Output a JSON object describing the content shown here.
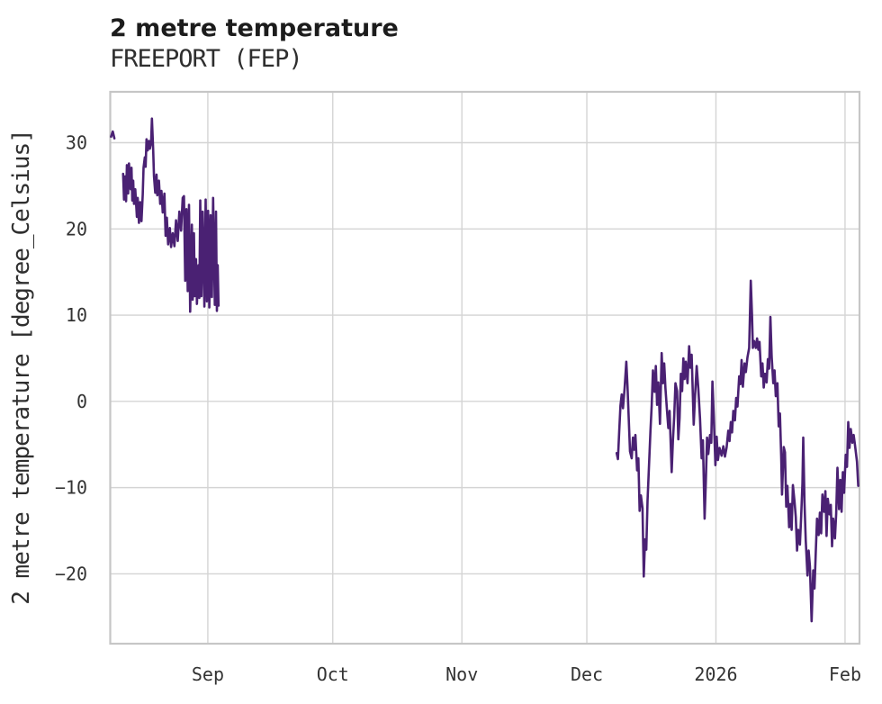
{
  "chart_data": {
    "type": "line",
    "title": "2 metre temperature",
    "subtitle": "FREEPORT (FEP)",
    "xlabel": "",
    "ylabel": "2 metre temperature [degree_Celsius]",
    "x_unit": "days since 2025-08-08T12:00 (time axis)",
    "y_unit": "degree_Celsius",
    "xlim": [
      0,
      179.9
    ],
    "ylim": [
      -28.1,
      35.9
    ],
    "grid": true,
    "legend": "none",
    "grid_color": "#d4d4d4",
    "spine_color": "#c6c6c6",
    "background_color": "#ffffff",
    "text_color": "#333333",
    "xticks": [
      {
        "d": 23.43,
        "label": "Sep"
      },
      {
        "d": 53.43,
        "label": "Oct"
      },
      {
        "d": 84.43,
        "label": "Nov"
      },
      {
        "d": 114.43,
        "label": "Dec"
      },
      {
        "d": 145.43,
        "label": "2026"
      },
      {
        "d": 176.43,
        "label": "Feb"
      }
    ],
    "yticks": [
      {
        "v": 30,
        "label": "30"
      },
      {
        "v": 20,
        "label": "20"
      },
      {
        "v": 10,
        "label": "10"
      },
      {
        "v": 0,
        "label": "0"
      },
      {
        "v": -10,
        "label": "−10"
      },
      {
        "v": -20,
        "label": "−20"
      }
    ],
    "series": [
      {
        "name": "2 metre temperature",
        "color": "#4a2173",
        "line_width": 2.6,
        "segments": [
          [
            [
              0.2,
              30.7
            ],
            [
              0.6,
              31.3
            ],
            [
              1.0,
              30.5
            ]
          ],
          [
            [
              3.1,
              26.4
            ],
            [
              3.3,
              23.4
            ],
            [
              3.6,
              26.1
            ],
            [
              3.8,
              23.2
            ],
            [
              4.0,
              27.4
            ],
            [
              4.3,
              24.1
            ],
            [
              4.5,
              27.6
            ],
            [
              4.9,
              24.6
            ],
            [
              5.1,
              27.1
            ],
            [
              5.3,
              23.3
            ],
            [
              5.5,
              25.6
            ],
            [
              5.7,
              22.9
            ],
            [
              6.0,
              24.6
            ],
            [
              6.4,
              21.4
            ],
            [
              6.6,
              23.6
            ],
            [
              6.9,
              20.7
            ],
            [
              7.2,
              23.1
            ],
            [
              7.5,
              20.9
            ],
            [
              7.8,
              24.0
            ],
            [
              8.0,
              27.1
            ],
            [
              8.3,
              28.3
            ],
            [
              8.5,
              27.2
            ],
            [
              8.7,
              30.4
            ],
            [
              9.0,
              29.1
            ],
            [
              9.3,
              30.2
            ],
            [
              9.5,
              29.3
            ],
            [
              9.8,
              30.0
            ],
            [
              10.0,
              32.8
            ],
            [
              10.3,
              29.2
            ],
            [
              10.5,
              26.1
            ],
            [
              10.8,
              24.2
            ],
            [
              11.1,
              26.3
            ],
            [
              11.3,
              23.9
            ],
            [
              11.7,
              25.6
            ],
            [
              12.0,
              22.9
            ],
            [
              12.3,
              24.4
            ],
            [
              12.6,
              21.9
            ],
            [
              13.0,
              24.1
            ],
            [
              13.3,
              19.2
            ],
            [
              13.6,
              21.3
            ],
            [
              13.9,
              18.2
            ],
            [
              14.3,
              20.1
            ],
            [
              14.6,
              17.9
            ],
            [
              15.0,
              19.5
            ],
            [
              15.4,
              18.0
            ],
            [
              15.8,
              21.0
            ],
            [
              16.2,
              18.6
            ],
            [
              16.6,
              22.0
            ],
            [
              17.0,
              19.8
            ],
            [
              17.4,
              23.6
            ],
            [
              17.7,
              23.8
            ],
            [
              18.0,
              14.0
            ],
            [
              18.3,
              22.3
            ],
            [
              18.6,
              12.8
            ],
            [
              18.9,
              22.8
            ],
            [
              19.2,
              10.4
            ],
            [
              19.6,
              20.5
            ],
            [
              19.8,
              11.8
            ],
            [
              20.1,
              19.5
            ],
            [
              20.3,
              12.2
            ],
            [
              20.6,
              16.5
            ],
            [
              20.8,
              11.3
            ],
            [
              21.2,
              15.8
            ],
            [
              21.4,
              12.0
            ],
            [
              21.6,
              23.3
            ],
            [
              21.9,
              12.2
            ],
            [
              22.2,
              22.0
            ],
            [
              22.6,
              11.0
            ],
            [
              22.9,
              23.4
            ],
            [
              23.2,
              11.6
            ],
            [
              23.5,
              22.1
            ],
            [
              23.8,
              10.9
            ],
            [
              24.1,
              21.6
            ],
            [
              24.4,
              12.1
            ],
            [
              24.7,
              23.6
            ],
            [
              25.1,
              11.2
            ],
            [
              25.4,
              22.0
            ],
            [
              25.6,
              10.5
            ],
            [
              25.8,
              15.8
            ],
            [
              26.0,
              11.1
            ]
          ],
          [
            [
              121.6,
              -6.0
            ],
            [
              121.9,
              -6.7
            ],
            [
              122.2,
              -3.5
            ],
            [
              122.5,
              -0.5
            ],
            [
              122.8,
              0.8
            ],
            [
              123.1,
              -0.8
            ],
            [
              123.5,
              1.5
            ],
            [
              123.9,
              4.6
            ],
            [
              124.2,
              1.8
            ],
            [
              124.5,
              -2.0
            ],
            [
              124.8,
              -5.8
            ],
            [
              125.2,
              -6.6
            ],
            [
              125.5,
              -4.2
            ],
            [
              125.8,
              -5.6
            ],
            [
              126.1,
              -3.9
            ],
            [
              126.5,
              -8.0
            ],
            [
              126.8,
              -6.6
            ],
            [
              127.1,
              -12.7
            ],
            [
              127.4,
              -10.9
            ],
            [
              127.8,
              -12.4
            ],
            [
              128.1,
              -20.3
            ],
            [
              128.4,
              -16.0
            ],
            [
              128.7,
              -17.2
            ],
            [
              129.0,
              -11.5
            ],
            [
              129.4,
              -7.0
            ],
            [
              129.7,
              -3.5
            ],
            [
              130.0,
              -0.5
            ],
            [
              130.3,
              3.6
            ],
            [
              130.7,
              1.1
            ],
            [
              131.0,
              4.1
            ],
            [
              131.3,
              -0.4
            ],
            [
              131.6,
              2.2
            ],
            [
              132.0,
              -2.6
            ],
            [
              132.4,
              5.6
            ],
            [
              132.7,
              2.1
            ],
            [
              133.0,
              4.4
            ],
            [
              133.3,
              1.5
            ],
            [
              133.7,
              -1.2
            ],
            [
              134.0,
              -3.1
            ],
            [
              134.3,
              -1.1
            ],
            [
              134.8,
              -8.2
            ],
            [
              135.1,
              -4.5
            ],
            [
              135.4,
              -1.8
            ],
            [
              135.7,
              2.1
            ],
            [
              136.1,
              1.2
            ],
            [
              136.4,
              -4.4
            ],
            [
              136.7,
              -1.9
            ],
            [
              137.0,
              3.2
            ],
            [
              137.3,
              1.2
            ],
            [
              137.6,
              5.0
            ],
            [
              137.9,
              2.6
            ],
            [
              138.2,
              4.6
            ],
            [
              138.6,
              2.1
            ],
            [
              139.0,
              6.4
            ],
            [
              139.3,
              3.9
            ],
            [
              139.6,
              5.4
            ],
            [
              140.1,
              -2.7
            ],
            [
              140.4,
              0.5
            ],
            [
              140.8,
              4.1
            ],
            [
              141.2,
              1.5
            ],
            [
              141.6,
              -2.0
            ],
            [
              142.0,
              -6.6
            ],
            [
              142.3,
              -4.5
            ],
            [
              142.7,
              -13.6
            ],
            [
              143.0,
              -9.5
            ],
            [
              143.3,
              -4.2
            ],
            [
              143.6,
              -6.1
            ],
            [
              144.0,
              -3.9
            ],
            [
              144.3,
              -4.8
            ],
            [
              144.6,
              2.3
            ],
            [
              144.9,
              -1.5
            ],
            [
              145.3,
              -7.4
            ],
            [
              145.6,
              -4.1
            ],
            [
              145.9,
              -6.8
            ],
            [
              146.3,
              -5.4
            ],
            [
              146.8,
              -6.3
            ],
            [
              147.2,
              -5.2
            ],
            [
              147.6,
              -6.4
            ],
            [
              148.0,
              -5.3
            ],
            [
              148.4,
              -3.4
            ],
            [
              148.7,
              -4.6
            ],
            [
              149.0,
              -2.4
            ],
            [
              149.3,
              -3.6
            ],
            [
              149.6,
              -1.1
            ],
            [
              150.0,
              -2.2
            ],
            [
              150.3,
              0.4
            ],
            [
              150.6,
              -0.6
            ],
            [
              151.0,
              2.9
            ],
            [
              151.3,
              2.0
            ],
            [
              151.6,
              4.8
            ],
            [
              151.9,
              1.7
            ],
            [
              152.3,
              4.4
            ],
            [
              152.6,
              3.4
            ],
            [
              153.0,
              5.1
            ],
            [
              153.4,
              6.2
            ],
            [
              153.8,
              14.0
            ],
            [
              154.1,
              9.9
            ],
            [
              154.3,
              6.2
            ],
            [
              154.6,
              7.0
            ],
            [
              155.0,
              6.2
            ],
            [
              155.3,
              7.3
            ],
            [
              155.6,
              6.0
            ],
            [
              155.9,
              6.9
            ],
            [
              156.3,
              2.9
            ],
            [
              156.6,
              4.4
            ],
            [
              156.9,
              1.6
            ],
            [
              157.2,
              3.2
            ],
            [
              157.6,
              2.2
            ],
            [
              157.9,
              4.9
            ],
            [
              158.2,
              3.8
            ],
            [
              158.5,
              9.8
            ],
            [
              158.8,
              5.2
            ],
            [
              159.2,
              2.1
            ],
            [
              159.5,
              3.6
            ],
            [
              159.8,
              0.6
            ],
            [
              160.2,
              2.1
            ],
            [
              160.5,
              -2.9
            ],
            [
              160.8,
              -1.4
            ],
            [
              161.1,
              -6.4
            ],
            [
              161.3,
              -10.8
            ],
            [
              161.7,
              -5.3
            ],
            [
              162.0,
              -5.9
            ],
            [
              162.3,
              -12.2
            ],
            [
              162.6,
              -9.8
            ],
            [
              163.0,
              -14.6
            ],
            [
              163.3,
              -11.9
            ],
            [
              163.6,
              -14.9
            ],
            [
              163.9,
              -9.7
            ],
            [
              164.3,
              -11.6
            ],
            [
              164.6,
              -13.4
            ],
            [
              164.9,
              -17.3
            ],
            [
              165.2,
              -14.9
            ],
            [
              165.6,
              -16.6
            ],
            [
              165.9,
              -13.3
            ],
            [
              166.2,
              -9.5
            ],
            [
              166.4,
              -4.2
            ],
            [
              166.7,
              -11.8
            ],
            [
              167.0,
              -16.2
            ],
            [
              167.4,
              -20.2
            ],
            [
              167.7,
              -17.3
            ],
            [
              168.0,
              -19.1
            ],
            [
              168.4,
              -25.5
            ],
            [
              168.8,
              -19.6
            ],
            [
              169.1,
              -21.7
            ],
            [
              169.4,
              -17.5
            ],
            [
              169.7,
              -13.6
            ],
            [
              170.1,
              -15.5
            ],
            [
              170.4,
              -12.9
            ],
            [
              170.7,
              -15.3
            ],
            [
              171.0,
              -10.8
            ],
            [
              171.4,
              -12.8
            ],
            [
              171.7,
              -10.4
            ],
            [
              172.0,
              -15.6
            ],
            [
              172.3,
              -11.3
            ],
            [
              172.7,
              -13.1
            ],
            [
              173.0,
              -12.0
            ],
            [
              173.3,
              -16.8
            ],
            [
              173.6,
              -13.6
            ],
            [
              174.0,
              -15.9
            ],
            [
              174.3,
              -13.0
            ],
            [
              174.6,
              -7.7
            ],
            [
              175.0,
              -12.5
            ],
            [
              175.3,
              -9.1
            ],
            [
              175.6,
              -12.8
            ],
            [
              175.9,
              -8.2
            ],
            [
              176.2,
              -10.6
            ],
            [
              176.6,
              -6.2
            ],
            [
              176.9,
              -7.6
            ],
            [
              177.2,
              -2.4
            ],
            [
              177.5,
              -5.4
            ],
            [
              177.8,
              -3.2
            ],
            [
              178.2,
              -4.8
            ],
            [
              178.5,
              -3.9
            ],
            [
              178.8,
              -5.0
            ],
            [
              179.3,
              -7.0
            ],
            [
              179.6,
              -9.8
            ]
          ]
        ]
      }
    ]
  }
}
